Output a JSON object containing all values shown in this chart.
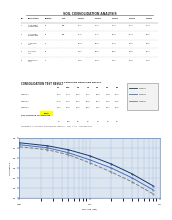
{
  "title_top": "SOIL CONSOLIDATION ANALYSIS",
  "bg_color": "#ffffff",
  "section2_title": "CONSOLIDATION TEST RESULT",
  "graph_bg": "#dce6f1",
  "graph_title": "PRESSURE PRESSURE RESULT",
  "curve_color1": "#1f3864",
  "curve_color2": "#4472c4",
  "curve_color3": "#7f7f7f",
  "highlight_color": "#ffff00",
  "grid_color": "#4472c4",
  "x_values": [
    0.1,
    0.25,
    0.5,
    1.0,
    2.0,
    4.0,
    8.0
  ],
  "y_series1": [
    1.75,
    1.72,
    1.68,
    1.62,
    1.54,
    1.44,
    1.32
  ],
  "y_series2": [
    1.73,
    1.7,
    1.65,
    1.58,
    1.5,
    1.4,
    1.28
  ],
  "y_series3": [
    1.71,
    1.68,
    1.63,
    1.55,
    1.46,
    1.36,
    1.24
  ],
  "ylim": [
    1.2,
    1.8
  ],
  "xlim": [
    0.1,
    10.0
  ]
}
